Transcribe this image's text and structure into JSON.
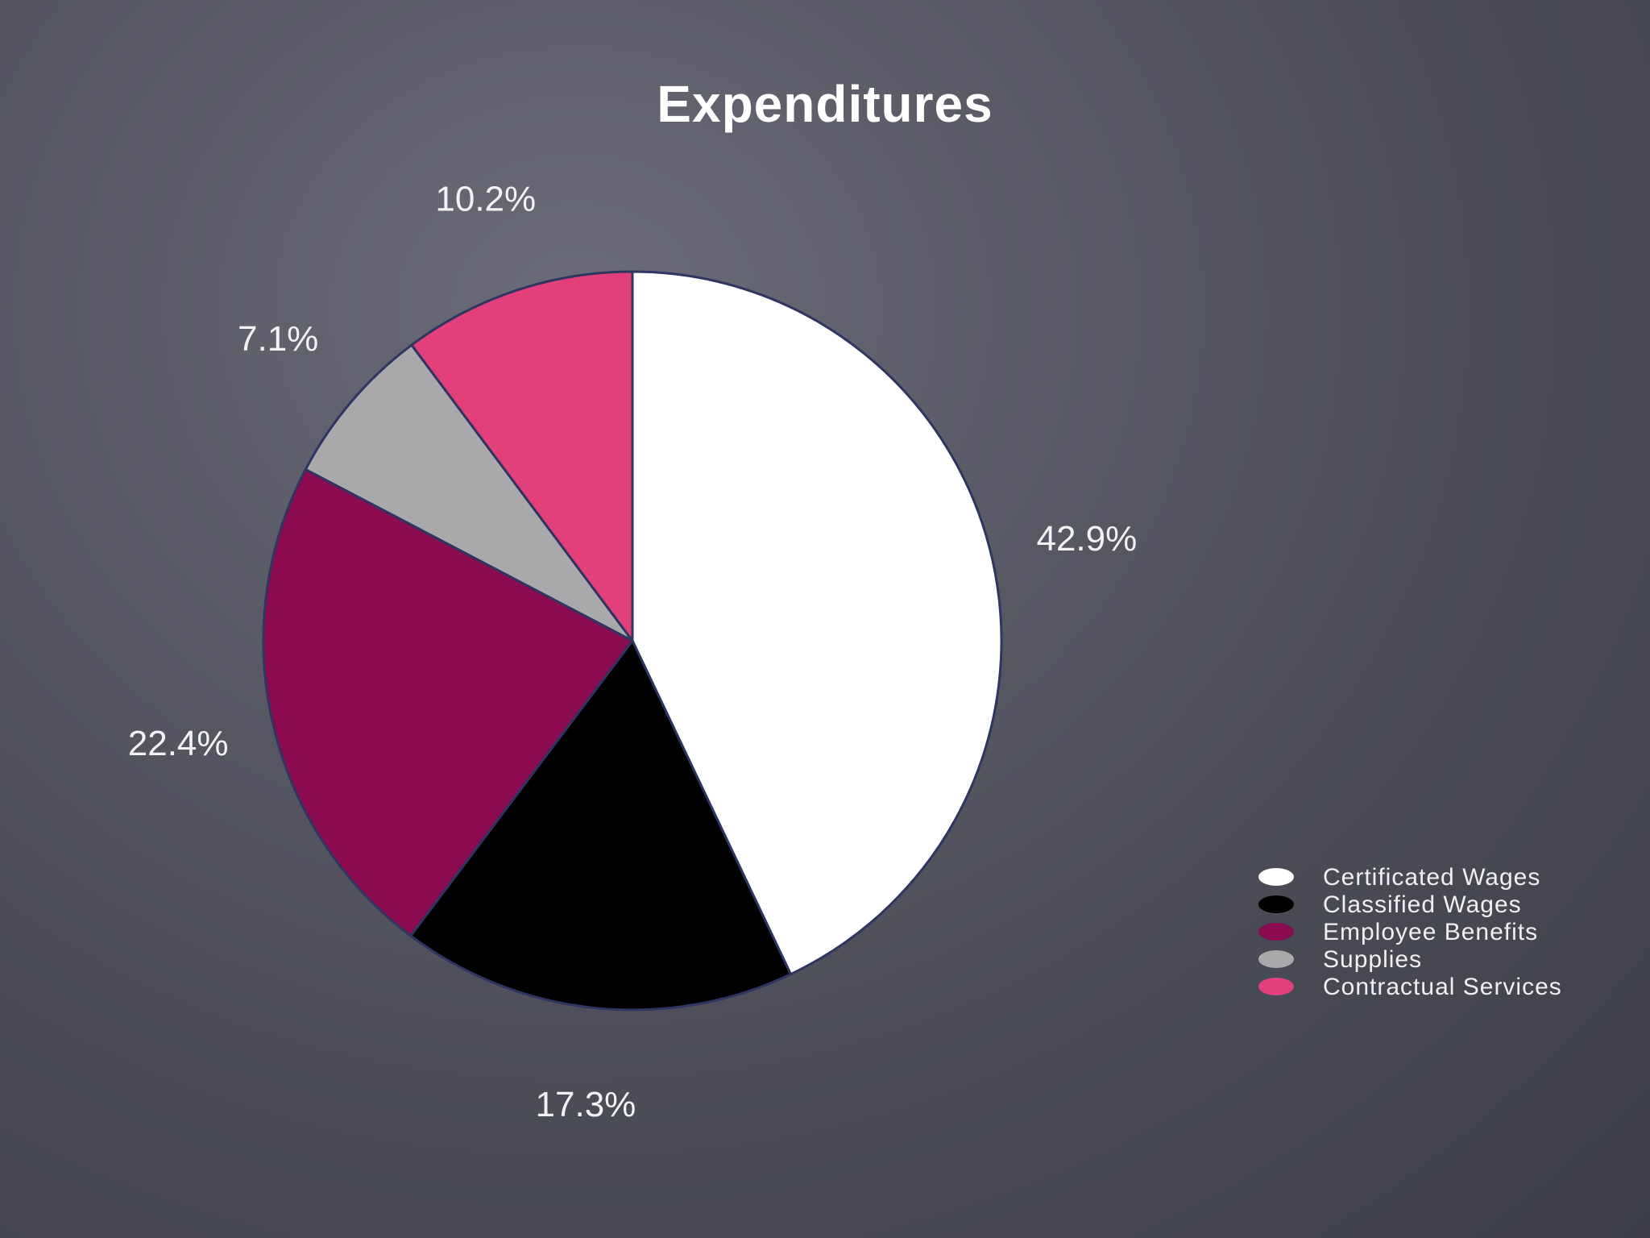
{
  "chart_data": {
    "type": "pie",
    "title": "Expenditures",
    "categories": [
      "Certificated Wages",
      "Classified Wages",
      "Employee Benefits",
      "Supplies",
      "Contractual Services"
    ],
    "values": [
      42.9,
      17.3,
      22.4,
      7.1,
      10.2
    ],
    "labels": [
      "42.9%",
      "17.3%",
      "22.4%",
      "7.1%",
      "10.2%"
    ],
    "colors": [
      "#ffffff",
      "#000000",
      "#8b0a50",
      "#a9a9ab",
      "#e33f7a"
    ],
    "start": "12 o'clock",
    "direction": "clockwise",
    "legend_position": "right"
  }
}
